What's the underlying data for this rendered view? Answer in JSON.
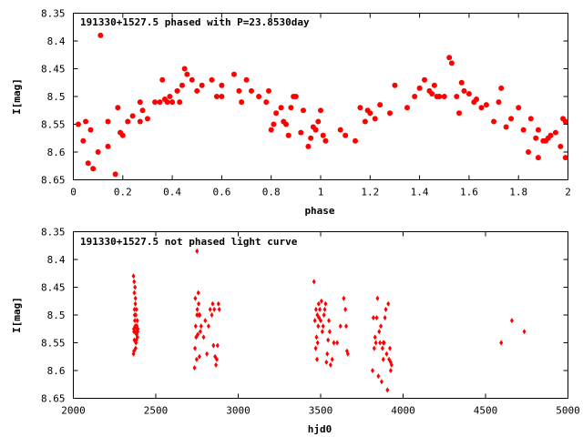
{
  "colors": {
    "points": "#ff0000",
    "axes": "#000000",
    "background": "#ffffff"
  },
  "chart_data": [
    {
      "type": "scatter",
      "title": "191330+1527.5 phased with P=23.8530day",
      "xlabel": "phase",
      "ylabel": "I[mag]",
      "xlim": [
        0,
        2
      ],
      "ylim": [
        8.35,
        8.65
      ],
      "y_inverted": true,
      "x_ticks": [
        "0",
        "0.2",
        "0.4",
        "0.6",
        "0.8",
        "1",
        "1.2",
        "1.4",
        "1.6",
        "1.8",
        "2"
      ],
      "y_ticks": [
        "8.35",
        "8.4",
        "8.45",
        "8.5",
        "8.55",
        "8.6",
        "8.65"
      ],
      "marker": "filled-circle",
      "grid": false,
      "series": [
        {
          "x": [
            0.02,
            0.04,
            0.05,
            0.06,
            0.07,
            0.08,
            0.1,
            0.11,
            0.14,
            0.14,
            0.18,
            0.19,
            0.2,
            0.22,
            0.24,
            0.27,
            0.27,
            0.28,
            0.3,
            0.33,
            0.35,
            0.36,
            0.37,
            0.38,
            0.39,
            0.4,
            0.42,
            0.43,
            0.44,
            0.45,
            0.46,
            0.48,
            0.5,
            0.52,
            0.56,
            0.58,
            0.6,
            0.6,
            0.65,
            0.67,
            0.68,
            0.7,
            0.72,
            0.75,
            0.78,
            0.79,
            0.8,
            0.81,
            0.82,
            0.84,
            0.85,
            0.86,
            0.87,
            0.88,
            0.89,
            0.9,
            0.92,
            0.93,
            0.95,
            0.96,
            0.97,
            0.98,
            0.99,
            1.0,
            1.01,
            1.02,
            1.08,
            1.1,
            1.14,
            1.16,
            1.18,
            1.19,
            1.2,
            1.22,
            1.24,
            1.28,
            1.3,
            1.35,
            1.38,
            1.4,
            1.42,
            1.44,
            1.45,
            1.46,
            1.47,
            1.48,
            1.5,
            1.52,
            1.53,
            1.55,
            1.56,
            1.57,
            1.58,
            1.6,
            1.62,
            1.63,
            1.65,
            1.67,
            1.7,
            1.72,
            1.73,
            1.75,
            1.77,
            1.8,
            1.82,
            1.84,
            1.85,
            1.87,
            1.88,
            1.9,
            1.92,
            1.95,
            1.97,
            1.98,
            1.99
          ],
          "y": [
            8.55,
            8.58,
            8.545,
            8.62,
            8.56,
            8.63,
            8.6,
            8.39,
            8.59,
            8.545,
            8.52,
            8.565,
            8.57,
            8.545,
            8.535,
            8.51,
            8.545,
            8.525,
            8.54,
            8.51,
            8.51,
            8.47,
            8.505,
            8.51,
            8.5,
            8.51,
            8.49,
            8.51,
            8.48,
            8.45,
            8.46,
            8.47,
            8.49,
            8.48,
            8.47,
            8.5,
            8.5,
            8.48,
            8.46,
            8.49,
            8.51,
            8.47,
            8.49,
            8.5,
            8.51,
            8.49,
            8.56,
            8.55,
            8.53,
            8.52,
            8.545,
            8.55,
            8.57,
            8.52,
            8.5,
            8.5,
            8.565,
            8.525,
            8.59,
            8.575,
            8.555,
            8.56,
            8.545,
            8.525,
            8.57,
            8.58,
            8.56,
            8.57,
            8.58,
            8.52,
            8.545,
            8.525,
            8.53,
            8.54,
            8.515,
            8.53,
            8.48,
            8.52,
            8.5,
            8.485,
            8.47,
            8.49,
            8.495,
            8.48,
            8.5,
            8.5,
            8.5,
            8.43,
            8.44,
            8.5,
            8.53,
            8.475,
            8.49,
            8.495,
            8.51,
            8.505,
            8.52,
            8.515,
            8.545,
            8.51,
            8.485,
            8.555,
            8.54,
            8.52,
            8.56,
            8.6,
            8.54,
            8.575,
            8.56,
            8.58,
            8.575,
            8.565,
            8.59,
            8.54,
            8.61
          ],
          "y_extra": [
            {
              "x": 0.17,
              "y": 8.64
            },
            {
              "x": 1.88,
              "y": 8.61
            },
            {
              "x": 1.91,
              "y": 8.58
            },
            {
              "x": 1.93,
              "y": 8.57
            },
            {
              "x": 1.99,
              "y": 8.545
            }
          ]
        }
      ]
    },
    {
      "type": "scatter",
      "title": "191330+1527.5 not phased light curve",
      "xlabel": "hjd0",
      "ylabel": "I[mag]",
      "xlim": [
        2000,
        5000
      ],
      "ylim": [
        8.35,
        8.65
      ],
      "y_inverted": true,
      "x_ticks": [
        "2000",
        "2500",
        "3000",
        "3500",
        "4000",
        "4500",
        "5000"
      ],
      "y_ticks": [
        "8.35",
        "8.4",
        "8.45",
        "8.5",
        "8.55",
        "8.6",
        "8.65"
      ],
      "marker": "small-diamond",
      "grid": false,
      "series": [
        {
          "x": [
            2365,
            2365,
            2367,
            2368,
            2368,
            2369,
            2370,
            2370,
            2371,
            2372,
            2373,
            2374,
            2374,
            2375,
            2376,
            2377,
            2378,
            2379,
            2380,
            2381,
            2382,
            2383,
            2384,
            2385,
            2386,
            2387,
            2388,
            2389,
            2390,
            2391,
            2735,
            2738,
            2740,
            2742,
            2745,
            2748,
            2750,
            2752,
            2755,
            2758,
            2760,
            2762,
            2765,
            2767,
            2770,
            2775,
            2790,
            2800,
            2810,
            2820,
            2830,
            2840,
            2845,
            2850,
            2855,
            2860,
            2865,
            2870,
            2875,
            2880,
            2885,
            3460,
            3465,
            3470,
            3472,
            3475,
            3478,
            3480,
            3482,
            3485,
            3488,
            3490,
            3495,
            3500,
            3505,
            3510,
            3515,
            3520,
            3525,
            3530,
            3535,
            3540,
            3545,
            3550,
            3555,
            3560,
            3570,
            3580,
            3600,
            3620,
            3640,
            3650,
            3655,
            3660,
            3665,
            3815,
            3820,
            3825,
            3830,
            3835,
            3840,
            3845,
            3850,
            3855,
            3860,
            3865,
            3870,
            3875,
            3880,
            3885,
            3890,
            3895,
            3900,
            3905,
            3910,
            3915,
            3920,
            3925,
            3930,
            4595,
            4660,
            4735
          ],
          "y": [
            8.43,
            8.57,
            8.525,
            8.53,
            8.565,
            8.44,
            8.545,
            8.46,
            8.49,
            8.5,
            8.51,
            8.53,
            8.45,
            8.52,
            8.48,
            8.47,
            8.56,
            8.5,
            8.55,
            8.52,
            8.545,
            8.49,
            8.535,
            8.52,
            8.525,
            8.53,
            8.51,
            8.54,
            8.53,
            8.525,
            8.595,
            8.56,
            8.47,
            8.52,
            8.54,
            8.58,
            8.5,
            8.49,
            8.535,
            8.46,
            8.48,
            8.5,
            8.575,
            8.5,
            8.53,
            8.52,
            8.54,
            8.51,
            8.57,
            8.52,
            8.49,
            8.5,
            8.48,
            8.555,
            8.49,
            8.575,
            8.59,
            8.58,
            8.555,
            8.48,
            8.49,
            8.44,
            8.51,
            8.56,
            8.49,
            8.54,
            8.58,
            8.5,
            8.55,
            8.52,
            8.48,
            8.505,
            8.49,
            8.51,
            8.475,
            8.53,
            8.52,
            8.5,
            8.49,
            8.48,
            8.585,
            8.57,
            8.545,
            8.51,
            8.53,
            8.59,
            8.58,
            8.55,
            8.55,
            8.52,
            8.47,
            8.49,
            8.52,
            8.565,
            8.57,
            8.6,
            8.505,
            8.56,
            8.54,
            8.55,
            8.505,
            8.47,
            8.61,
            8.53,
            8.55,
            8.52,
            8.62,
            8.56,
            8.58,
            8.55,
            8.505,
            8.49,
            8.57,
            8.635,
            8.48,
            8.58,
            8.56,
            8.6,
            8.59,
            8.55,
            8.51,
            8.53
          ],
          "y_extra": [
            {
              "x": 2750,
              "y": 8.385
            },
            {
              "x": 3925,
              "y": 8.585
            },
            {
              "x": 3880,
              "y": 8.55
            }
          ]
        }
      ]
    }
  ]
}
